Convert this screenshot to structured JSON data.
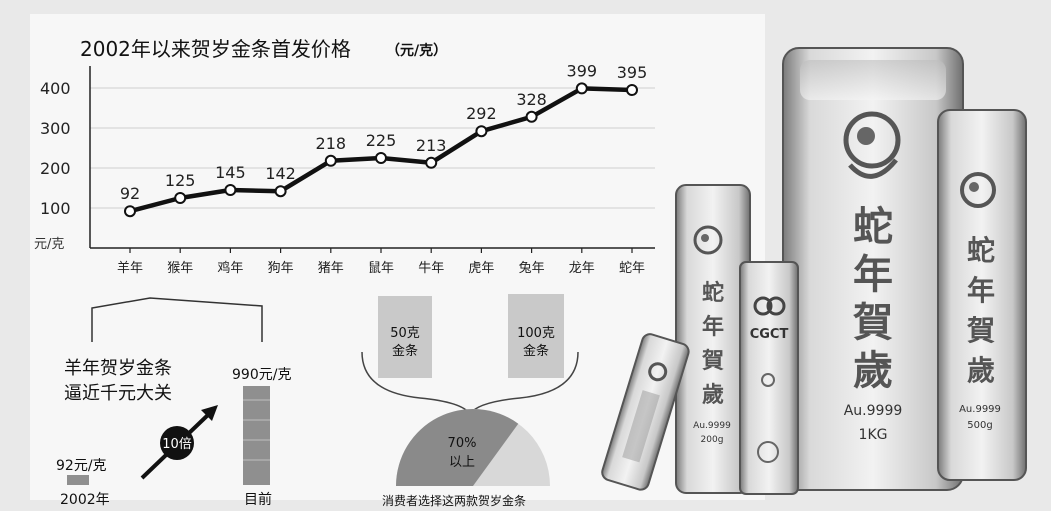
{
  "chart_data": {
    "type": "line",
    "title": "2002年以来贺岁金条首发价格",
    "unit_label": "（元/克）",
    "ylabel": "元/克",
    "categories": [
      "羊年",
      "猴年",
      "鸡年",
      "狗年",
      "猪年",
      "鼠年",
      "牛年",
      "虎年",
      "兔年",
      "龙年",
      "蛇年"
    ],
    "values": [
      92,
      125,
      145,
      142,
      218,
      225,
      213,
      292,
      328,
      399,
      395
    ],
    "yticks": [
      100,
      200,
      300,
      400
    ],
    "ylim": [
      0,
      440
    ],
    "grid": true
  },
  "comparison": {
    "headline_line1": "羊年贺岁金条",
    "headline_line2": "逼近千元大关",
    "start_value": 92,
    "start_label": "92元/克",
    "start_year": "2002年",
    "end_value": 990,
    "end_label": "990元/克",
    "end_year": "目前",
    "multiplier_label": "10倍"
  },
  "consumer_choice": {
    "option_a": "50克金条",
    "option_b": "100克金条",
    "share_label": "70%以上",
    "share_fraction": 0.7,
    "caption": "消费者选择这两款贺岁金条"
  },
  "bars_photo": {
    "large_bar_text": "蛇年賀歲",
    "large_bar_weight": "Au.9999 1KG",
    "right_bar_weight": "Au.9999 500g",
    "left_bar_weight": "Au.9999 200g",
    "small_bar_logo": "CGCT",
    "colors": {
      "background": "#e9e9e9",
      "line": "#111111",
      "bar_gray": "#a8a8a8",
      "bar_light": "#d4d4d4"
    }
  }
}
